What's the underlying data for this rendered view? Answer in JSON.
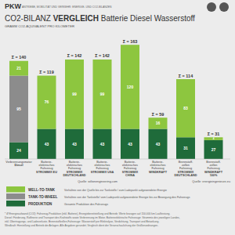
{
  "header": {
    "label": "PKW",
    "subtitle": "ANTRIEBE, MOBILITÄT UND VERKEHR: ENERGIE- UND CO2-BILANZEN"
  },
  "chart_data": {
    "type": "bar",
    "stacked": true,
    "data_labels": true,
    "tick_labels": false,
    "legend": "bottom",
    "title": "CO2-BILANZ VERGLEICH Batterie Diesel Wasserstoff",
    "subtitle": "GRAMM CO2-ÄQUIVALENT PRO KILOMETER",
    "categories": [
      "Verbrennungsmotor\nDiesel",
      "Batterie-\nelektrisches\nFahrzeug\nSTROMMIX EU",
      "Batterie-\nelektrisches\nFahrzeug\nSTROMMIX\nDEUTSCHLAND",
      "Batterie-\nelektrisches\nFahrzeug\nSTROMMIX USA",
      "Batterie-\nelektrisches\nFahrzeug\nSTROMMIX\nCHINA",
      "Batterie-\nelektrisches\nFahrzeug\nWINDKRAFT",
      "Brennstoff-\nzellen\nFahrzeug\nSTROMMIX\nDEUTSCHLAND",
      "Brennstoff-\nzellen\nFahrzeug\nWINDKRAFT\n100%"
    ],
    "series": [
      {
        "name": "PRODUKTION",
        "color": "#1f6b3a",
        "description": "Gesamte Produktion des Fahrzeugs",
        "values": [
          24,
          43,
          43,
          43,
          43,
          43,
          31,
          27
        ]
      },
      {
        "name": "TANK-TO-WHEEL",
        "color": "#8c8c8c",
        "description": "Verhältnis von der Tankstelle/ vom Ladepunkt aufgewendeter Energie bis zur Bewegung des Fahrzeugs",
        "values": [
          95,
          0,
          0,
          0,
          0,
          0,
          0,
          0
        ]
      },
      {
        "name": "WELL-TO-TANK",
        "color": "#8dc63f",
        "description": "Verhältnis von der Quelle bis zur Tankstelle / zum Ladepunkt aufgewendeter Energie",
        "values": [
          21,
          76,
          99,
          99,
          120,
          16,
          83,
          4
        ]
      }
    ],
    "total_labels": [
      "Σ = 140",
      "Σ = 119",
      "Σ = 142",
      "Σ = 142",
      "Σ = 163",
      "Σ ≈ 59",
      "Σ = 114",
      "Σ ≈ 31"
    ],
    "ylim": [
      0,
      180
    ],
    "yticks": [],
    "sources": [
      "Quelle: wiltonengineering.com",
      "Quelle: energieingenieure.eu"
    ],
    "footnote": [
      "* Ø Energieaufwand (CO2): Fahrzeug-Produktion (inkl. Batterie), Energiebereitstellung und Betrieb; Werte bezogen auf 150.000 km Laufleistung.",
      "Diesel: Förderung, Raffinerie und Transport des Kraftstoffs sowie Verbrennung im Motor. Batterieelektrische Fahrzeuge: Strommix des jeweiligen Landes,",
      "inkl. Übertragungs- und Ladeverluste. Brennstoffzellen-Fahrzeuge: Wasserstoff per Elektrolyse, Verdichtung, Transport und Betankung.",
      "Windkraft: Herstellung und Betrieb der Anlagen. Alle Angaben gerundet; Vergleich dient der Veranschaulichung der Größenordnungen."
    ]
  }
}
